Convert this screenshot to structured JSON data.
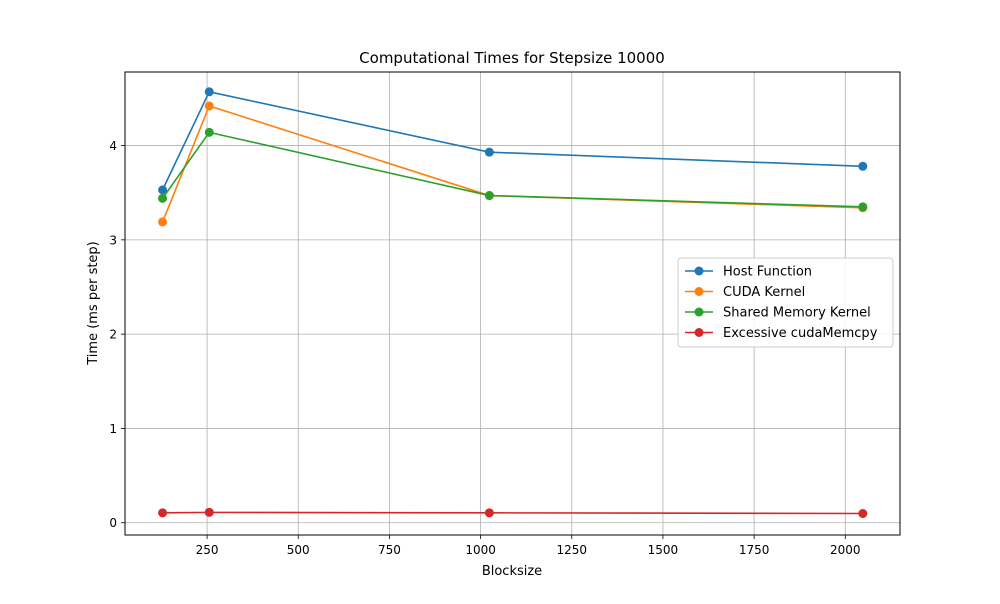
{
  "chart_data": {
    "type": "line",
    "title": "Computational Times for Stepsize 10000",
    "xlabel": "Blocksize",
    "ylabel": "Time (ms per step)",
    "xlim": [
      25,
      2150
    ],
    "ylim": [
      -0.13,
      4.78
    ],
    "x_ticks": [
      250,
      500,
      750,
      1000,
      1250,
      1500,
      1750,
      2000
    ],
    "y_ticks": [
      0,
      1,
      2,
      3,
      4
    ],
    "grid": true,
    "legend_position": "center-right",
    "x": [
      128,
      256,
      1024,
      2048
    ],
    "series": [
      {
        "name": "Host Function",
        "color": "#1f77b4",
        "values": [
          3.53,
          4.57,
          3.93,
          3.78
        ]
      },
      {
        "name": "CUDA Kernel",
        "color": "#ff7f0e",
        "values": [
          3.19,
          4.42,
          3.47,
          3.34
        ]
      },
      {
        "name": "Shared Memory Kernel",
        "color": "#2ca02c",
        "values": [
          3.44,
          4.14,
          3.47,
          3.35
        ]
      },
      {
        "name": "Excessive cudaMemcpy",
        "color": "#d62728",
        "values": [
          0.105,
          0.11,
          0.105,
          0.098
        ]
      }
    ]
  }
}
